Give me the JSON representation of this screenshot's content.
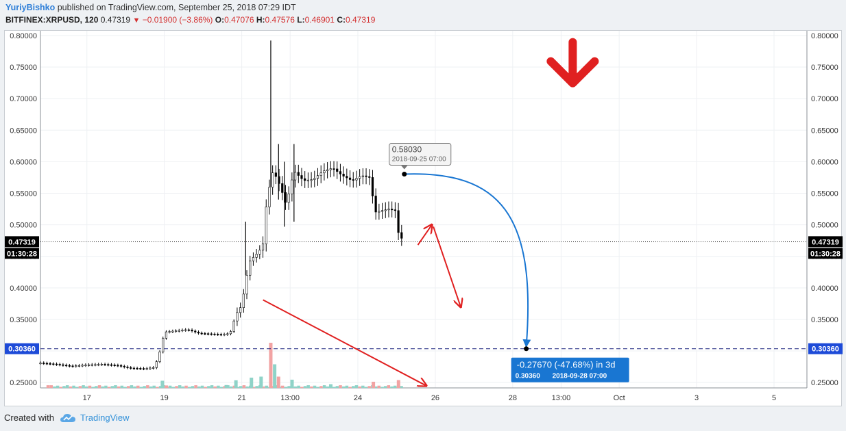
{
  "header": {
    "author": "YuriyBishko",
    "published_text": "published on TradingView.com, September 25, 2018 07:29 IDT",
    "symbol": "BITFINEX:XRPUSD, 120",
    "last_price": "0.47319",
    "change": "−0.01900 (−3.86%)",
    "o_label": "O:",
    "o_value": "0.47076",
    "h_label": "H:",
    "h_value": "0.47576",
    "l_label": "L:",
    "l_value": "0.46901",
    "c_label": "C:",
    "c_value": "0.47319"
  },
  "footer": {
    "created_with": "Created with",
    "brand": "TradingView"
  },
  "colors": {
    "up_volume": "#8fd3c8",
    "down_volume": "#f2a3a3",
    "candle": "#000000",
    "arrow_red": "#e02020",
    "measure_blue": "#1976d2"
  },
  "chart_data": {
    "type": "candlestick",
    "ylim": [
      0.2415,
      0.8075
    ],
    "y_ticks": [
      "0.80000",
      "0.75000",
      "0.70000",
      "0.65000",
      "0.60000",
      "0.55000",
      "0.50000",
      "0.45000",
      "0.40000",
      "0.35000",
      "0.30000",
      "0.25000"
    ],
    "x_ticks": [
      {
        "label": "17",
        "day": 17
      },
      {
        "label": "19",
        "day": 19
      },
      {
        "label": "21",
        "day": 21
      },
      {
        "label": "13:00",
        "day": 22.25
      },
      {
        "label": "24",
        "day": 24
      },
      {
        "label": "26",
        "day": 26
      },
      {
        "label": "28",
        "day": 28
      },
      {
        "label": "13:00",
        "day": 29.25
      },
      {
        "label": "Oct",
        "day": 30.75
      },
      {
        "label": "3",
        "day": 32.75
      },
      {
        "label": "5",
        "day": 34.75
      }
    ],
    "xlim": [
      15.8,
      35.6
    ],
    "price_path": [
      [
        15.8,
        0.281
      ],
      [
        16.2,
        0.279
      ],
      [
        16.6,
        0.276
      ],
      [
        17.0,
        0.278
      ],
      [
        17.4,
        0.279
      ],
      [
        17.8,
        0.277
      ],
      [
        18.1,
        0.273
      ],
      [
        18.5,
        0.272
      ],
      [
        18.75,
        0.274
      ],
      [
        18.9,
        0.302
      ],
      [
        19.0,
        0.33
      ],
      [
        19.3,
        0.332
      ],
      [
        19.6,
        0.334
      ],
      [
        19.9,
        0.328
      ],
      [
        20.2,
        0.327
      ],
      [
        20.5,
        0.326
      ],
      [
        20.7,
        0.328
      ],
      [
        20.85,
        0.358
      ],
      [
        21.0,
        0.372
      ],
      [
        21.1,
        0.41
      ],
      [
        21.2,
        0.442
      ],
      [
        21.45,
        0.458
      ],
      [
        21.55,
        0.47
      ],
      [
        21.65,
        0.542
      ],
      [
        21.8,
        0.583
      ],
      [
        21.9,
        0.575
      ],
      [
        22.0,
        0.56
      ],
      [
        22.15,
        0.532
      ],
      [
        22.35,
        0.585
      ],
      [
        22.6,
        0.57
      ],
      [
        22.85,
        0.572
      ],
      [
        23.1,
        0.585
      ],
      [
        23.35,
        0.59
      ],
      [
        23.6,
        0.578
      ],
      [
        23.85,
        0.57
      ],
      [
        24.1,
        0.578
      ],
      [
        24.3,
        0.575
      ],
      [
        24.45,
        0.52
      ],
      [
        24.8,
        0.525
      ],
      [
        25.0,
        0.522
      ],
      [
        25.05,
        0.485
      ],
      [
        25.2,
        0.473
      ]
    ],
    "spikes": [
      {
        "day": 21.75,
        "high": 0.792,
        "low": 0.56
      },
      {
        "day": 21.95,
        "high": 0.628,
        "low": 0.54
      },
      {
        "day": 22.35,
        "high": 0.628,
        "low": 0.505
      },
      {
        "day": 21.1,
        "high": 0.505,
        "low": 0.42
      },
      {
        "day": 22.1,
        "high": 0.6,
        "low": 0.497
      }
    ],
    "volume": [
      {
        "day": 18.95,
        "v": 0.35,
        "up": true
      },
      {
        "day": 19.05,
        "v": 0.12,
        "up": false
      },
      {
        "day": 20.6,
        "v": 0.14,
        "up": true
      },
      {
        "day": 20.85,
        "v": 0.37,
        "up": true
      },
      {
        "day": 21.25,
        "v": 0.5,
        "up": true
      },
      {
        "day": 21.5,
        "v": 0.55,
        "up": true
      },
      {
        "day": 21.75,
        "v": 2.2,
        "up": false
      },
      {
        "day": 21.85,
        "v": 1.15,
        "up": true
      },
      {
        "day": 21.95,
        "v": 0.55,
        "up": false
      },
      {
        "day": 22.3,
        "v": 0.4,
        "up": true
      },
      {
        "day": 23.3,
        "v": 0.18,
        "up": true
      },
      {
        "day": 24.4,
        "v": 0.3,
        "up": false
      },
      {
        "day": 25.05,
        "v": 0.38,
        "up": false
      }
    ],
    "current_price": {
      "value": 0.47319,
      "label": "0.47319",
      "timer": "01:30:28"
    },
    "target_line": {
      "value": 0.3036,
      "label": "0.30360"
    },
    "measure": {
      "start_price": "0.58030",
      "start_date": "2018-09-25 07:00",
      "change": "-0.27670 (-47.68%) in 3d",
      "end_price": "0.30360",
      "end_date": "2018-09-28  07:00",
      "start": {
        "day": 25.2,
        "price": 0.5803
      },
      "end": {
        "day": 28.35,
        "price": 0.3036
      }
    },
    "red_arrows": [
      {
        "from": [
          21.55,
          0.381
        ],
        "to": [
          25.75,
          0.2455
        ]
      },
      {
        "from": [
          25.55,
          0.468
        ],
        "to": [
          25.9,
          0.499
        ]
      },
      {
        "from": [
          25.95,
          0.497
        ],
        "to": [
          26.65,
          0.371
        ]
      }
    ],
    "big_arrow": {
      "day": 29.55,
      "price": 0.757
    }
  }
}
